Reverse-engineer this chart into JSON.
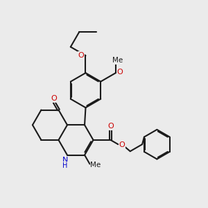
{
  "bg_color": "#ebebeb",
  "bond_color": "#1a1a1a",
  "o_color": "#cc0000",
  "n_color": "#0000cc",
  "line_width": 1.5,
  "fig_size": [
    3.0,
    3.0
  ],
  "dpi": 100,
  "xlim": [
    0,
    10
  ],
  "ylim": [
    0,
    10
  ]
}
